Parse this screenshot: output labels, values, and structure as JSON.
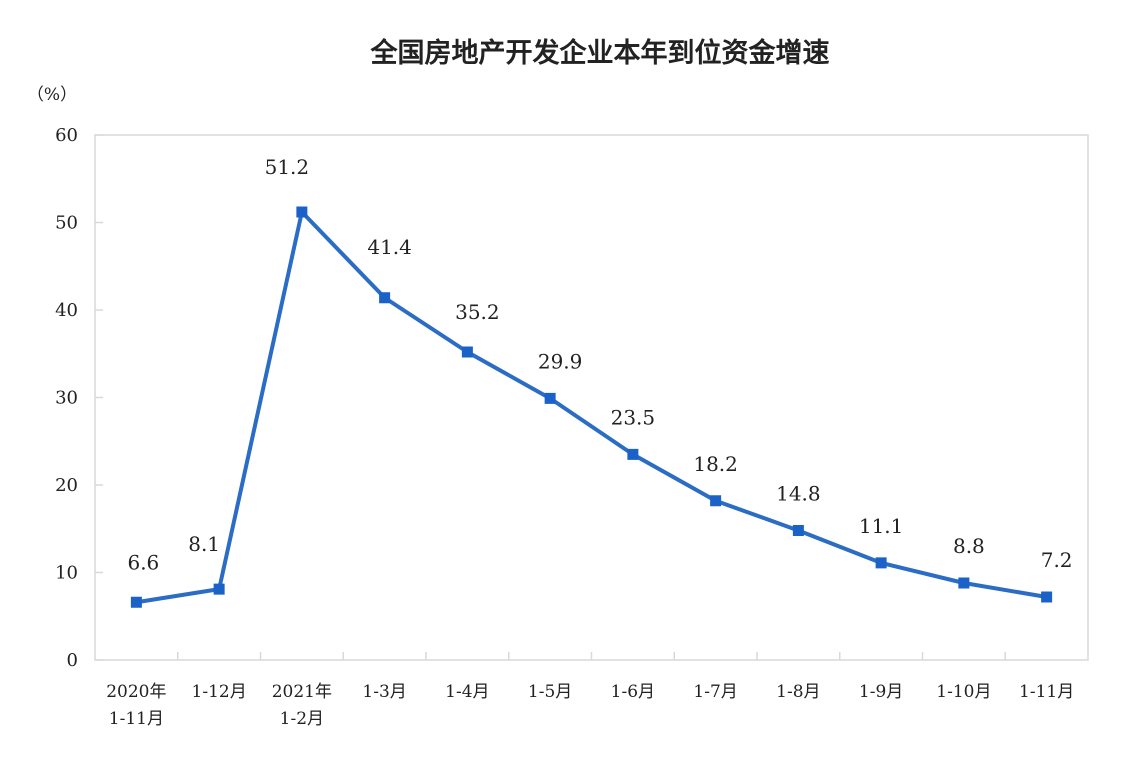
{
  "chart_data": {
    "type": "line",
    "title": "全国房地产开发企业本年到位资金增速",
    "ylabel": "（%）",
    "xlabel": "",
    "ylim": [
      0,
      60
    ],
    "yticks": [
      "0",
      "10",
      "20",
      "30",
      "40",
      "50",
      "60"
    ],
    "grid": false,
    "legend": "none",
    "categories": [
      "2020年\n1-11月",
      "1-12月",
      "2021年\n1-2月",
      "1-3月",
      "1-4月",
      "1-5月",
      "1-6月",
      "1-7月",
      "1-8月",
      "1-9月",
      "1-10月",
      "1-11月"
    ],
    "values": [
      6.6,
      8.1,
      51.2,
      41.4,
      35.2,
      29.9,
      23.5,
      18.2,
      14.8,
      11.1,
      8.8,
      7.2
    ],
    "data_labels": [
      "6.6",
      "8.1",
      "51.2",
      "41.4",
      "35.2",
      "29.9",
      "23.5",
      "18.2",
      "14.8",
      "11.1",
      "8.8",
      "7.2"
    ],
    "line_color": "#2b6cc4",
    "marker_color": "#1a62c8",
    "marker": "square"
  }
}
